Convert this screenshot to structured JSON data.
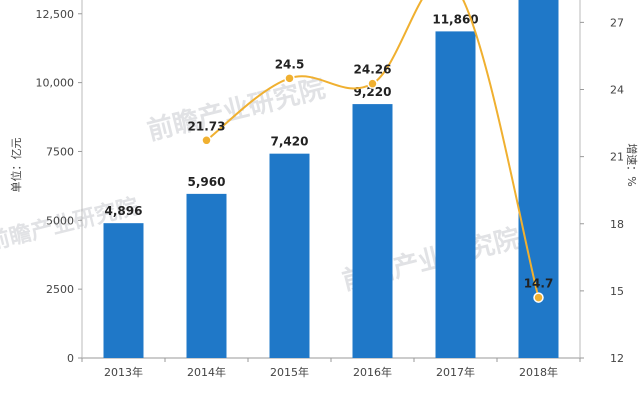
{
  "chart_data": {
    "type": "bar",
    "categories": [
      "2013年",
      "2014年",
      "2015年",
      "2016年",
      "2017年",
      "2018年"
    ],
    "series": [
      {
        "values": [
          4896,
          5960,
          7420,
          9220,
          11860,
          13580
        ],
        "data_labels": [
          "4,896",
          "5,960",
          "7,420",
          "9,220",
          "11,860",
          ""
        ],
        "color": "#1f78c8"
      },
      {
        "type": "line",
        "axis": "right",
        "values": [
          null,
          21.73,
          24.5,
          24.26,
          28.6,
          14.7
        ],
        "data_labels": [
          "",
          "21.73",
          "24.5",
          "24.26",
          "",
          "14.7"
        ],
        "color": "#f0b030"
      }
    ],
    "ylabel": "单位：亿元",
    "ylabel_right": "增速：%",
    "ylim": [
      0,
      13000
    ],
    "ylim_right": [
      12,
      28
    ],
    "yticks": [
      0,
      2500,
      5000,
      7500,
      10000,
      12500
    ],
    "ytick_labels": [
      "0",
      "2500",
      "5000",
      "7500",
      "10,000",
      "12,500"
    ],
    "yticks_right": [
      12,
      15,
      18,
      21,
      24,
      27
    ],
    "ytick_labels_right": [
      "12",
      "15",
      "18",
      "21",
      "24",
      "27"
    ],
    "grid": false,
    "watermark": "前瞻产业研究院"
  }
}
